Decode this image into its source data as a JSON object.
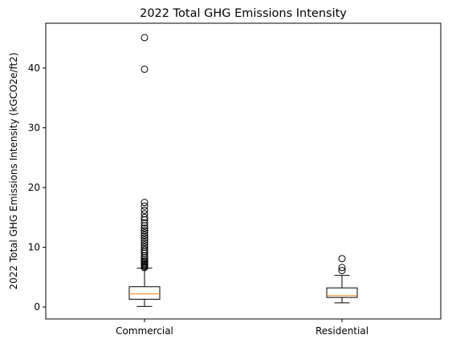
{
  "chart_data": {
    "type": "box",
    "title": "2022 Total GHG Emissions Intensity",
    "xlabel": "",
    "ylabel": "2022 Total GHG Emissions Intensity (kGCO2e/ft2)",
    "ylim": [
      -2.0,
      47.5
    ],
    "yticks": [
      0,
      10,
      20,
      30,
      40
    ],
    "grid": false,
    "categories": [
      "Commercial",
      "Residential"
    ],
    "boxes": [
      {
        "category": "Commercial",
        "whisker_low": 0.1,
        "q1": 1.3,
        "median": 2.2,
        "q3": 3.4,
        "whisker_high": 6.5,
        "outliers": [
          6.6,
          6.8,
          7.0,
          7.1,
          7.3,
          7.5,
          7.7,
          8.0,
          8.3,
          8.6,
          9.0,
          9.3,
          9.6,
          10.0,
          10.4,
          10.8,
          11.2,
          11.6,
          12.0,
          12.4,
          12.8,
          13.2,
          13.6,
          14.1,
          14.6,
          15.0,
          15.6,
          16.2,
          16.9,
          17.5,
          39.8,
          45.1
        ]
      },
      {
        "category": "Residential",
        "whisker_low": 0.7,
        "q1": 1.6,
        "median": 1.9,
        "q3": 3.2,
        "whisker_high": 5.3,
        "outliers": [
          6.1,
          6.6,
          8.1
        ]
      }
    ],
    "colors": {
      "box": "#000000",
      "median": "#ff7f0e",
      "outlier": "#000000"
    }
  }
}
